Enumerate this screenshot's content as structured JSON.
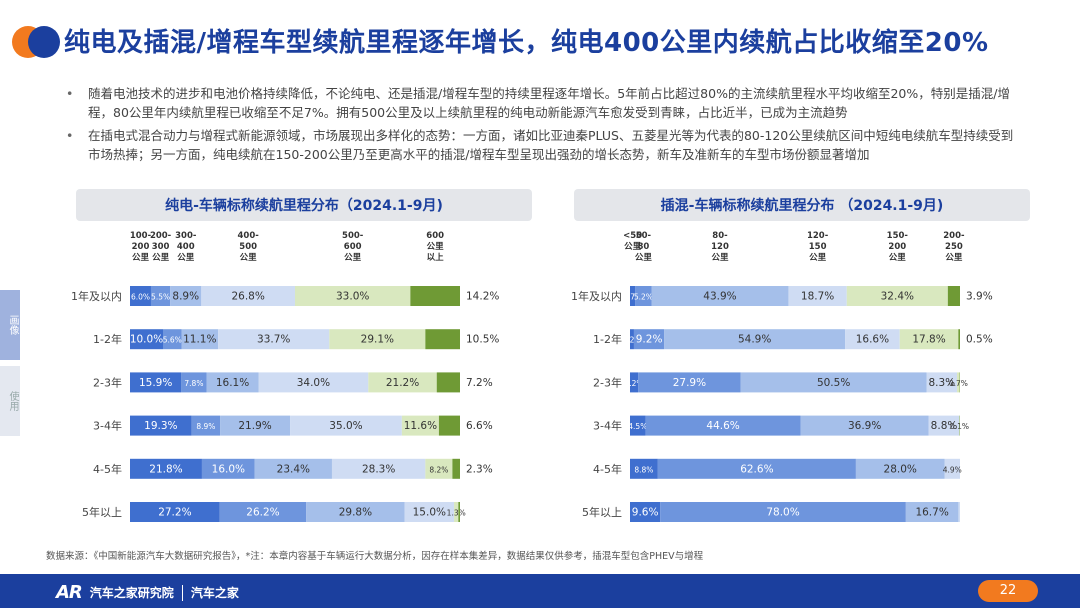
{
  "title": "纯电及插混/增程车型续航里程逐年增长，纯电400公里内续航占比收缩至20%",
  "bullets": [
    "随着电池技术的进步和电池价格持续降低，不论纯电、还是插混/增程车型的持续里程逐年增长。5年前占比超过80%的主流续航里程水平均收缩至20%，特别是插混/增程，80公里年内续航里程已收缩至不足7%。拥有500公里及以上续航里程的纯电动新能源汽车愈发受到青睐，占比近半，已成为主流趋势",
    "在插电式混合动力与增程式新能源领域，市场展现出多样化的态势：一方面，诸如比亚迪秦PLUS、五菱星光等为代表的80-120公里续航区间中短纯电续航车型持续受到市场热捧；另一方面，纯电续航在150-200公里乃至更高水平的插混/增程车型呈现出强劲的增长态势，新车及准新车的车型市场份额显著增加"
  ],
  "side_tabs": [
    "画像",
    "使用"
  ],
  "colors": {
    "brand_blue": "#1b3f9e",
    "brand_orange": "#f27a1f",
    "segments": [
      "#3f6fcf",
      "#6e95dd",
      "#a5bfea",
      "#cfdcf3",
      "#d9e8bf",
      "#6f9a35"
    ]
  },
  "chart_data": [
    {
      "type": "bar",
      "stacked": "horizontal-100",
      "title": "纯电-车辆标称续航里程分布（2024.1-9月)",
      "categories": [
        "1年及以内",
        "1-2年",
        "2-3年",
        "3-4年",
        "4-5年",
        "5年以上"
      ],
      "series": [
        {
          "name": "100-200公里",
          "values": [
            6.0,
            10.0,
            15.9,
            19.3,
            21.8,
            27.2
          ],
          "labels": [
            "6.0%",
            "10.0%",
            "15.9%",
            "19.3%",
            "21.8%",
            "27.2%"
          ]
        },
        {
          "name": "200-300公里",
          "values": [
            5.5,
            5.6,
            7.8,
            8.9,
            16.0,
            26.2
          ],
          "labels": [
            "5.5%",
            "5.6%",
            "7.8%",
            "8.9%",
            "16.0%",
            "26.2%"
          ]
        },
        {
          "name": "300-400公里",
          "values": [
            8.9,
            11.1,
            16.1,
            21.9,
            23.4,
            29.8
          ],
          "labels": [
            "8.9%",
            "11.1%",
            "16.1%",
            "21.9%",
            "23.4%",
            "29.8%"
          ]
        },
        {
          "name": "400-500公里",
          "values": [
            26.8,
            33.7,
            34.0,
            35.0,
            28.3,
            15.0
          ],
          "labels": [
            "26.8%",
            "33.7%",
            "34.0%",
            "35.0%",
            "28.3%",
            "15.0%"
          ]
        },
        {
          "name": "500-600公里",
          "values": [
            33.0,
            29.1,
            21.2,
            11.6,
            8.2,
            1.3
          ],
          "labels": [
            "33.0%",
            "29.1%",
            "21.2%",
            "11.6%",
            "8.2%",
            "1.3%"
          ]
        },
        {
          "name": "600公里以上",
          "values": [
            14.2,
            10.5,
            7.2,
            6.6,
            2.3,
            0.5
          ],
          "labels": [
            "14.2%",
            "10.5%",
            "7.2%",
            "6.6%",
            "2.3%",
            ""
          ]
        }
      ],
      "headers": [
        [
          "100-",
          "200",
          "公里"
        ],
        [
          "200-",
          "300",
          "公里"
        ],
        [
          "300-",
          "400",
          "公里"
        ],
        [
          "400-",
          "500",
          "公里"
        ],
        [
          "500-",
          "600",
          "公里"
        ],
        [
          "600",
          "公里",
          "以上"
        ]
      ]
    },
    {
      "type": "bar",
      "stacked": "horizontal-100",
      "title": "插混-车辆标称续航里程分布 （2024.1-9月)",
      "categories": [
        "1年及以内",
        "1-2年",
        "2-3年",
        "3-4年",
        "4-5年",
        "5年以上"
      ],
      "series": [
        {
          "name": "<50公里",
          "values": [
            1.7,
            1.2,
            2.2,
            4.5,
            8.8,
            9.6
          ],
          "labels": [
            "1.7%",
            "1.2%",
            "2.2%",
            "4.5%",
            "8.8%",
            "9.6%"
          ]
        },
        {
          "name": "50-80公里",
          "values": [
            5.2,
            9.2,
            27.9,
            44.6,
            62.6,
            78.0
          ],
          "labels": [
            "5.2%",
            "9.2%",
            "27.9%",
            "44.6%",
            "62.6%",
            "78.0%"
          ]
        },
        {
          "name": "80-120公里",
          "values": [
            43.9,
            54.9,
            50.5,
            36.9,
            28.0,
            16.7
          ],
          "labels": [
            "43.9%",
            "54.9%",
            "50.5%",
            "36.9%",
            "28.0%",
            "16.7%"
          ]
        },
        {
          "name": "120-150公里",
          "values": [
            18.7,
            16.6,
            8.3,
            8.8,
            4.9,
            0.5
          ],
          "labels": [
            "18.7%",
            "16.6%",
            "8.3%",
            "8.8%",
            "4.9%",
            ""
          ]
        },
        {
          "name": "150-200公里",
          "values": [
            32.4,
            17.8,
            0.7,
            0.1,
            0.0,
            0.0
          ],
          "labels": [
            "32.4%",
            "17.8%",
            "0.7%",
            "0.1%",
            "",
            ""
          ]
        },
        {
          "name": "200-250公里",
          "values": [
            3.9,
            0.5,
            0.1,
            0.1,
            0.0,
            0.0
          ],
          "labels": [
            "3.9%",
            "0.5%",
            "",
            "",
            "",
            ""
          ]
        }
      ],
      "headers": [
        [
          "<50",
          "公里"
        ],
        [
          "50-",
          "80",
          "公里"
        ],
        [
          "80-",
          "120",
          "公里"
        ],
        [
          "120-",
          "150",
          "公里"
        ],
        [
          "150-",
          "200",
          "公里"
        ],
        [
          "200-",
          "250",
          "公里"
        ]
      ]
    }
  ],
  "footer": {
    "source": "数据来源：《中国新能源汽车大数据研究报告》，*注：本章内容基于车辆运行大数据分析，因存在样本集差异，数据结果仅供参考，插混车型包含PHEV与增程",
    "brand_mark": "AR",
    "brand_name": "汽车之家研究院",
    "brand_name2": "汽车之家",
    "page": "22"
  }
}
